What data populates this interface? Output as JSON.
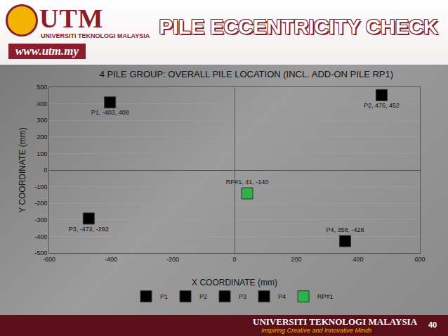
{
  "slide": {
    "brand": "UTM",
    "brand_sub": "UNIVERSITI TEKNOLOGI MALAYSIA",
    "website": "www.utm.my",
    "header_title": "PILE ECCENTRICITY CHECK",
    "footer_title": "UNIVERSITI TEKNOLOGI MALAYSIA",
    "footer_tagline": "Inspiring Creative and Innovative Minds",
    "page_number": "40"
  },
  "chart_data": {
    "type": "scatter",
    "title": "4 PILE GROUP: OVERALL PILE LOCATION (INCL. ADD-ON PILE RP1)",
    "x_label": "X COORDINATE (mm)",
    "y_label": "Y COORDINATE (mm)",
    "series": [
      {
        "name": "P1",
        "color": "#000000",
        "marker": "square",
        "x": [
          -403
        ],
        "values": [
          408
        ],
        "value_labels": [
          "P1, -403, 408"
        ]
      },
      {
        "name": "P2",
        "color": "#000000",
        "marker": "square",
        "x": [
          476
        ],
        "values": [
          452
        ],
        "value_labels": [
          "P2, 476, 452"
        ]
      },
      {
        "name": "P3",
        "color": "#000000",
        "marker": "square",
        "x": [
          -472
        ],
        "values": [
          -292
        ],
        "value_labels": [
          "P3, -472, -292"
        ]
      },
      {
        "name": "P4",
        "color": "#000000",
        "marker": "square",
        "x": [
          358
        ],
        "values": [
          -428
        ],
        "value_labels": [
          "P4, 358, -428"
        ]
      },
      {
        "name": "RP#1",
        "color": "#2db34a",
        "marker": "square",
        "x": [
          41
        ],
        "values": [
          -140
        ],
        "value_labels": [
          "RP#1, 41, -140"
        ]
      }
    ],
    "xlim": [
      -600,
      600
    ],
    "xticks": [
      -600,
      -400,
      -200,
      0,
      200,
      400,
      600
    ],
    "ylim": [
      -500,
      500
    ],
    "yticks": [
      -500,
      -400,
      -300,
      -200,
      -100,
      0,
      100,
      200,
      300,
      400,
      500
    ],
    "grid": true,
    "legend": "bottom",
    "data_labels": true
  }
}
